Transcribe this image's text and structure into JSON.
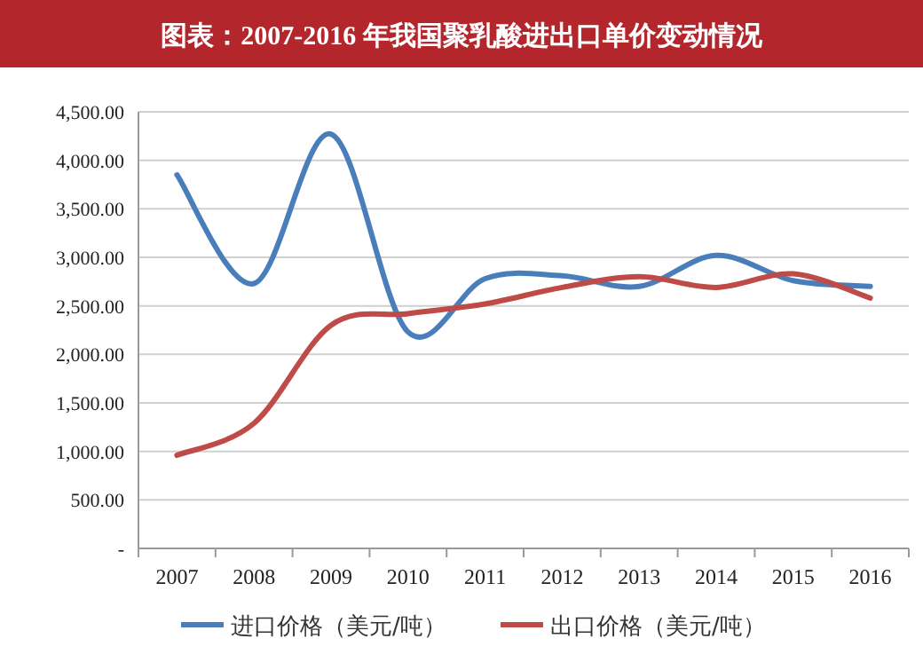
{
  "chart_data": {
    "type": "line",
    "title": "图表：2007-2016 年我国聚乳酸进出口单价变动情况",
    "categories": [
      "2007",
      "2008",
      "2009",
      "2010",
      "2011",
      "2012",
      "2013",
      "2014",
      "2015",
      "2016"
    ],
    "series": [
      {
        "name": "进口价格（美元/吨）",
        "color": "#4a7ebb",
        "values": [
          3850,
          2730,
          4270,
          2230,
          2780,
          2810,
          2700,
          3020,
          2760,
          2700
        ]
      },
      {
        "name": "出口价格（美元/吨）",
        "color": "#be4b48",
        "values": [
          960,
          1290,
          2300,
          2420,
          2520,
          2690,
          2800,
          2690,
          2830,
          2580
        ]
      }
    ],
    "ylim": [
      0,
      4500
    ],
    "yticks": [
      {
        "value": 0,
        "label": "-"
      },
      {
        "value": 500,
        "label": "500.00"
      },
      {
        "value": 1000,
        "label": "1,000.00"
      },
      {
        "value": 1500,
        "label": "1,500.00"
      },
      {
        "value": 2000,
        "label": "2,000.00"
      },
      {
        "value": 2500,
        "label": "2,500.00"
      },
      {
        "value": 3000,
        "label": "3,000.00"
      },
      {
        "value": 3500,
        "label": "3,500.00"
      },
      {
        "value": 4000,
        "label": "4,000.00"
      },
      {
        "value": 4500,
        "label": "4,500.00"
      }
    ],
    "grid": "y",
    "legend": "bottom",
    "marker": "none",
    "line_style": "solid"
  }
}
